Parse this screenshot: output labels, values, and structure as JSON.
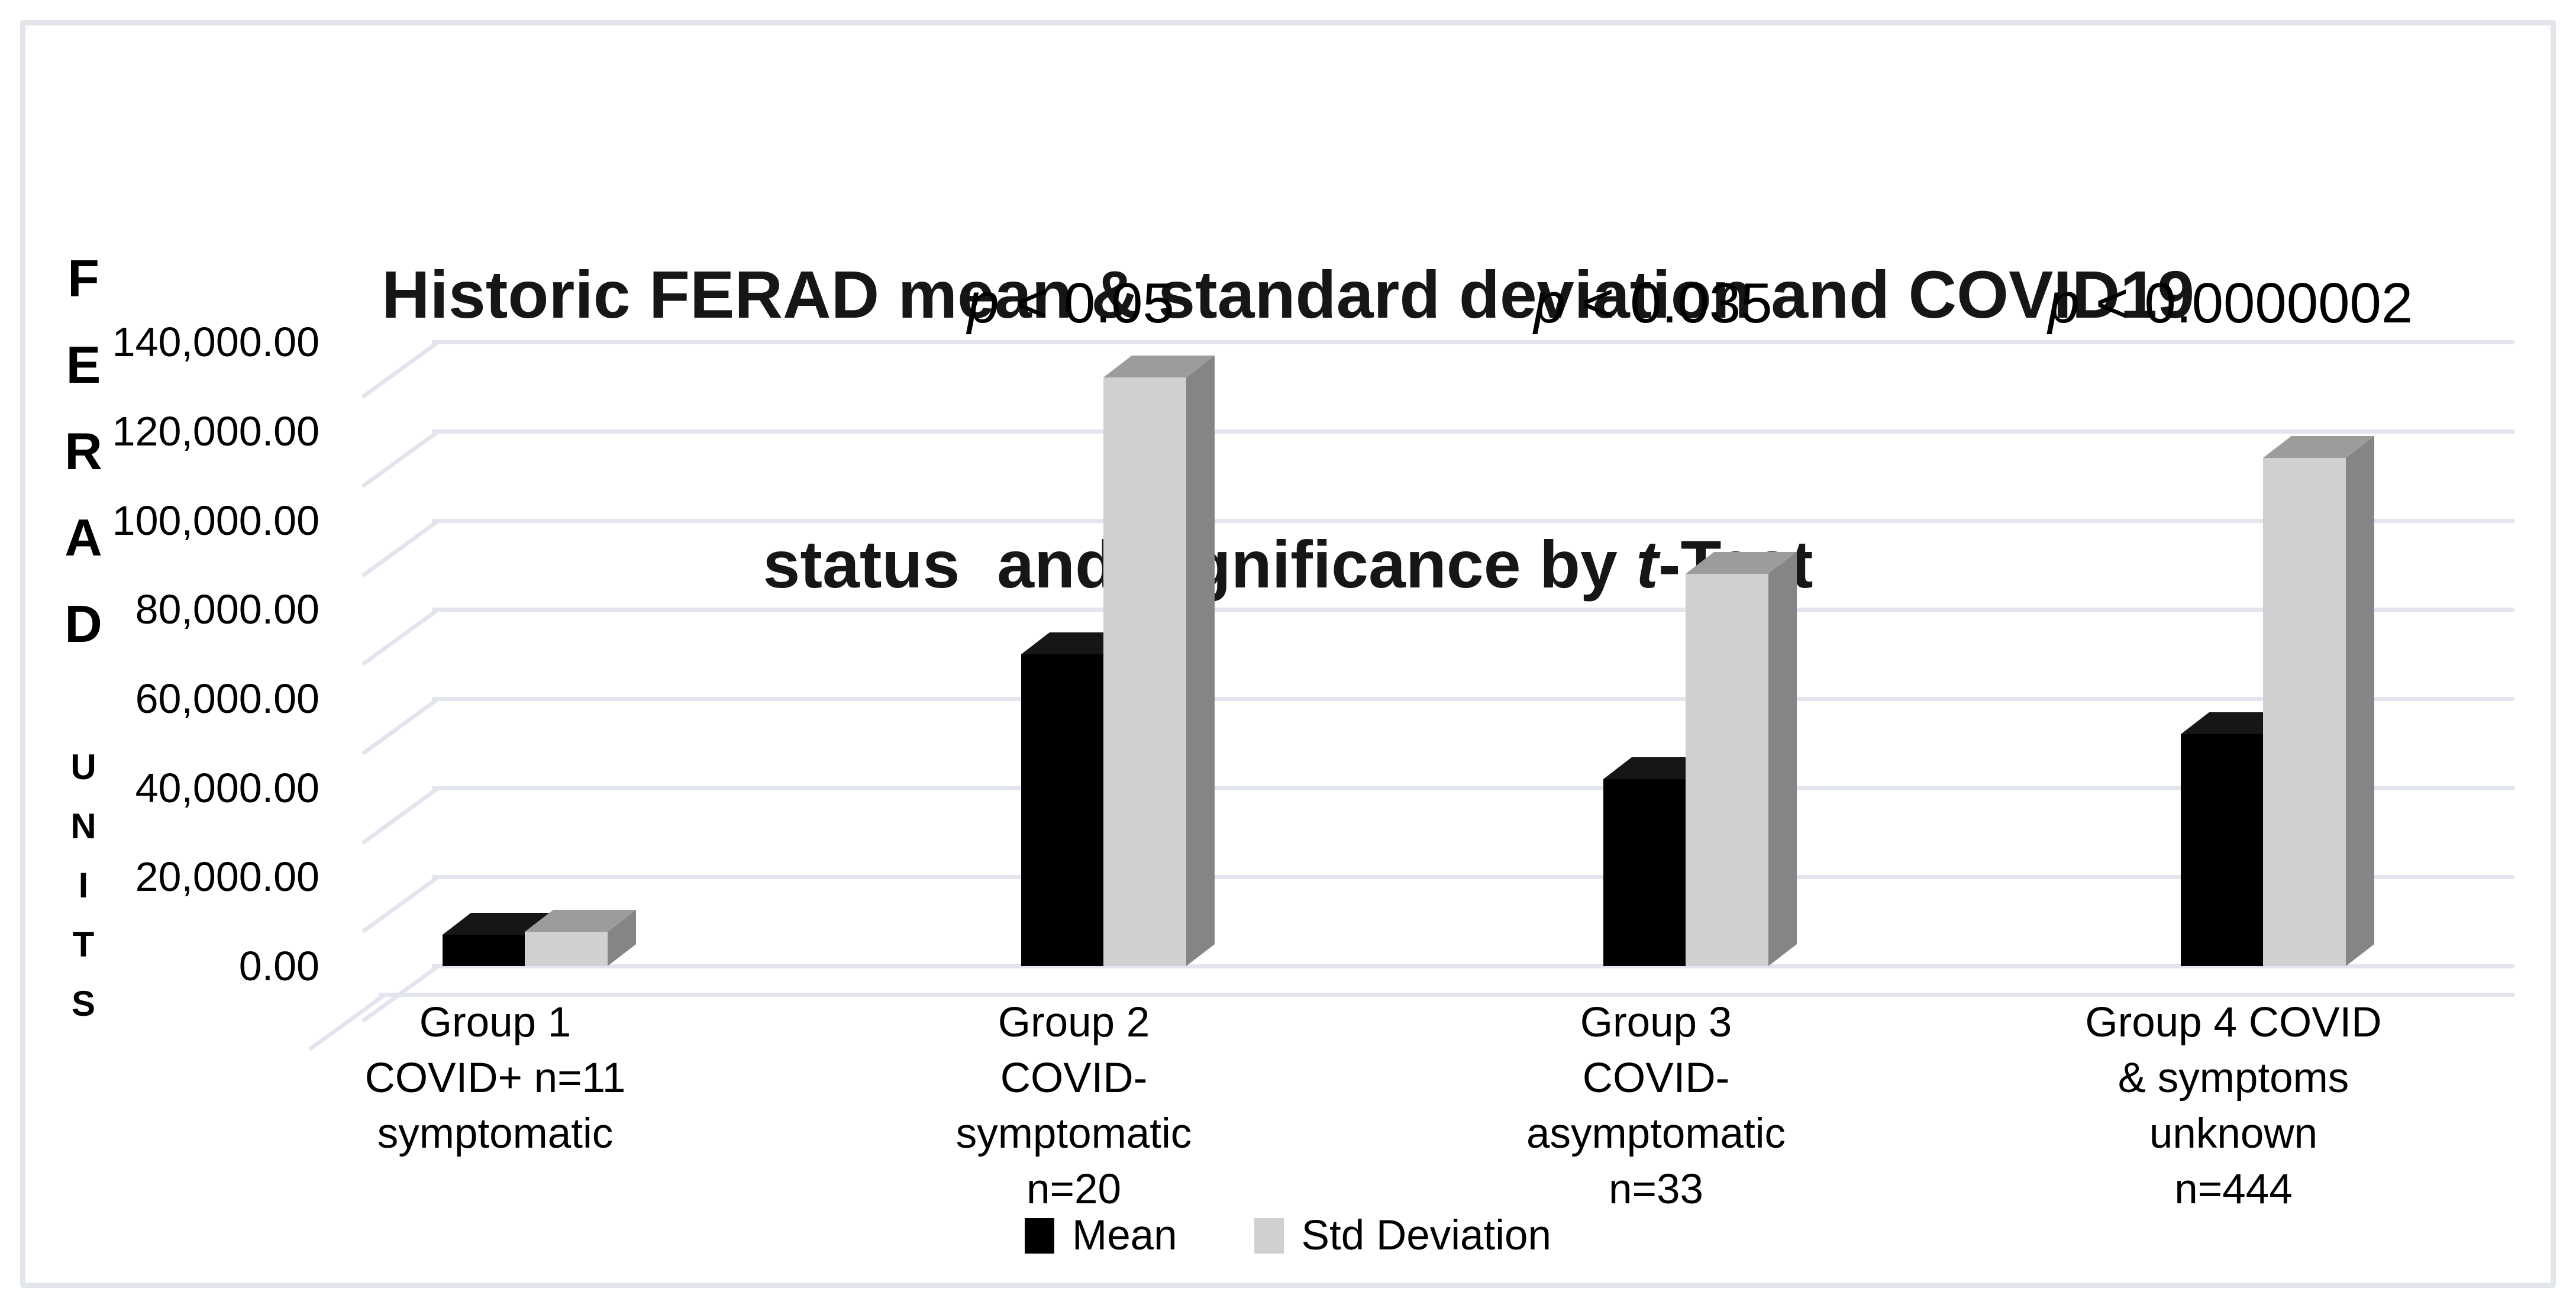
{
  "figure": {
    "title_line1": "Historic FERAD mean & standard deviation and COVID19",
    "title_line2_pre": "status  and significance by ",
    "title_line2_emph": "t",
    "title_line2_post": "-Test"
  },
  "y_axis": {
    "title_top": "FERAD",
    "title_bottom": "UNITS",
    "ticks": [
      {
        "label": "140,000.00",
        "value": 140000
      },
      {
        "label": "120,000.00",
        "value": 120000
      },
      {
        "label": "100,000.00",
        "value": 100000
      },
      {
        "label": "80,000.00",
        "value": 80000
      },
      {
        "label": "60,000.00",
        "value": 60000
      },
      {
        "label": "40,000.00",
        "value": 40000
      },
      {
        "label": "20,000.00",
        "value": 20000
      },
      {
        "label": "0.00",
        "value": 0
      }
    ]
  },
  "legend": {
    "items": [
      {
        "label": "Mean",
        "color": "#000000"
      },
      {
        "label": "Std Deviation",
        "color": "#d0d0d0"
      }
    ]
  },
  "chart_data": {
    "type": "bar",
    "style": "3d-column",
    "title": "Historic FERAD mean & standard deviation and COVID19 status and significance by t-Test",
    "xlabel": "",
    "ylabel": "FERAD UNITS",
    "ylim": [
      0,
      140000
    ],
    "y_tick_step": 20000,
    "grid": true,
    "legend_position": "bottom",
    "categories": [
      [
        "Group 1",
        "COVID+ n=11",
        "symptomatic"
      ],
      [
        "Group 2",
        "COVID-",
        "symptomatic",
        "n=20"
      ],
      [
        "Group 3",
        "COVID-",
        "asymptomatic",
        "n=33"
      ],
      [
        "Group 4 COVID",
        "& symptoms",
        "unknown",
        "n=444"
      ]
    ],
    "series": [
      {
        "name": "Mean",
        "color": "#000000",
        "values": [
          7000,
          70000,
          42000,
          52000
        ]
      },
      {
        "name": "Std Deviation",
        "color": "#d0d0d0",
        "values": [
          7700,
          132000,
          88000,
          114000
        ]
      }
    ],
    "annotations": [
      {
        "group_index": 1,
        "text": "p < 0.05"
      },
      {
        "group_index": 2,
        "text": "p < 0.035"
      },
      {
        "group_index": 3,
        "text": "p < 0.0000002"
      }
    ]
  },
  "colors": {
    "background": "#ffffff",
    "border": "#e2e6eb",
    "gridline": "#e2e5ed",
    "mean_front": "#000000",
    "mean_top": "#161616",
    "std_front": "#d0d0d0",
    "std_top": "#9c9c9c",
    "std_side": "#858585",
    "text": "#000000"
  }
}
